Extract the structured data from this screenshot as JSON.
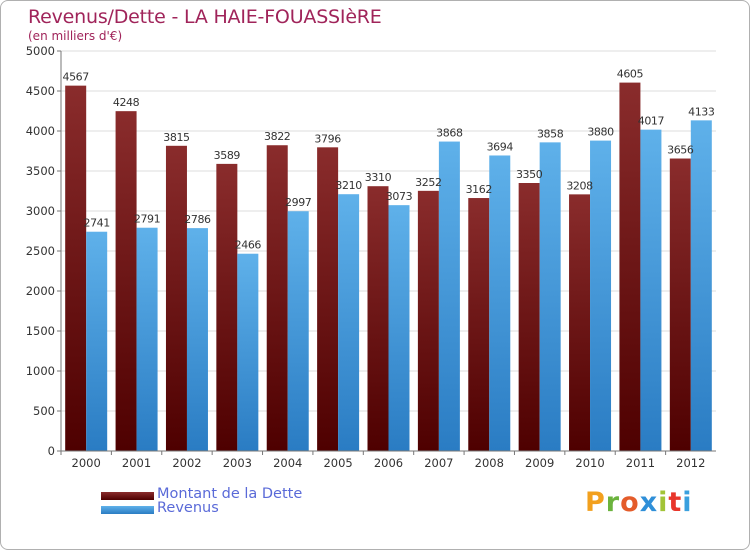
{
  "header": {
    "title": "Revenus/Dette - LA HAIE-FOUASSIèRE",
    "subtitle": "(en milliers d'€)"
  },
  "colors": {
    "dette_top": "#8a2c2c",
    "dette_bottom": "#4e0000",
    "revenus_top": "#5fb1ea",
    "revenus_bottom": "#2a7cc3",
    "title": "#a0245a",
    "legend_text": "#5a6ad8"
  },
  "legend": {
    "dette_label": "Montant de la Dette",
    "revenus_label": "Revenus"
  },
  "brand": {
    "logo_text": "Proxiti"
  },
  "chart_data": {
    "type": "bar",
    "title": "Revenus/Dette - LA HAIE-FOUASSIèRE",
    "subtitle": "(en milliers d'€)",
    "xlabel": "",
    "ylabel": "",
    "ylim": [
      0,
      5000
    ],
    "yticks": [
      "0",
      "500",
      "1000",
      "1500",
      "2000",
      "2500",
      "3000",
      "3500",
      "4000",
      "4500",
      "5000"
    ],
    "grid": true,
    "legend_position": "bottom-left",
    "categories": [
      "2000",
      "2001",
      "2002",
      "2003",
      "2004",
      "2005",
      "2006",
      "2007",
      "2008",
      "2009",
      "2010",
      "2011",
      "2012"
    ],
    "series": [
      {
        "name": "Montant de la Dette",
        "values": [
          4567,
          4248,
          3815,
          3589,
          3822,
          3796,
          3310,
          3252,
          3162,
          3350,
          3208,
          4605,
          3656
        ],
        "labels": [
          "4567",
          "4248",
          "3815",
          "3589",
          "3822",
          "3796",
          "3310",
          "3252",
          "3162",
          "3350",
          "3208",
          "4605",
          "3656"
        ]
      },
      {
        "name": "Revenus",
        "values": [
          2741,
          2791,
          2786,
          2466,
          2997,
          3210,
          3073,
          3868,
          3694,
          3858,
          3880,
          4017,
          4133
        ],
        "labels": [
          "2741",
          "2791",
          "2786",
          "2466",
          "2997",
          "3210",
          "3073",
          "3868",
          "3694",
          "3858",
          "3880",
          "4017",
          "4133"
        ]
      }
    ]
  }
}
